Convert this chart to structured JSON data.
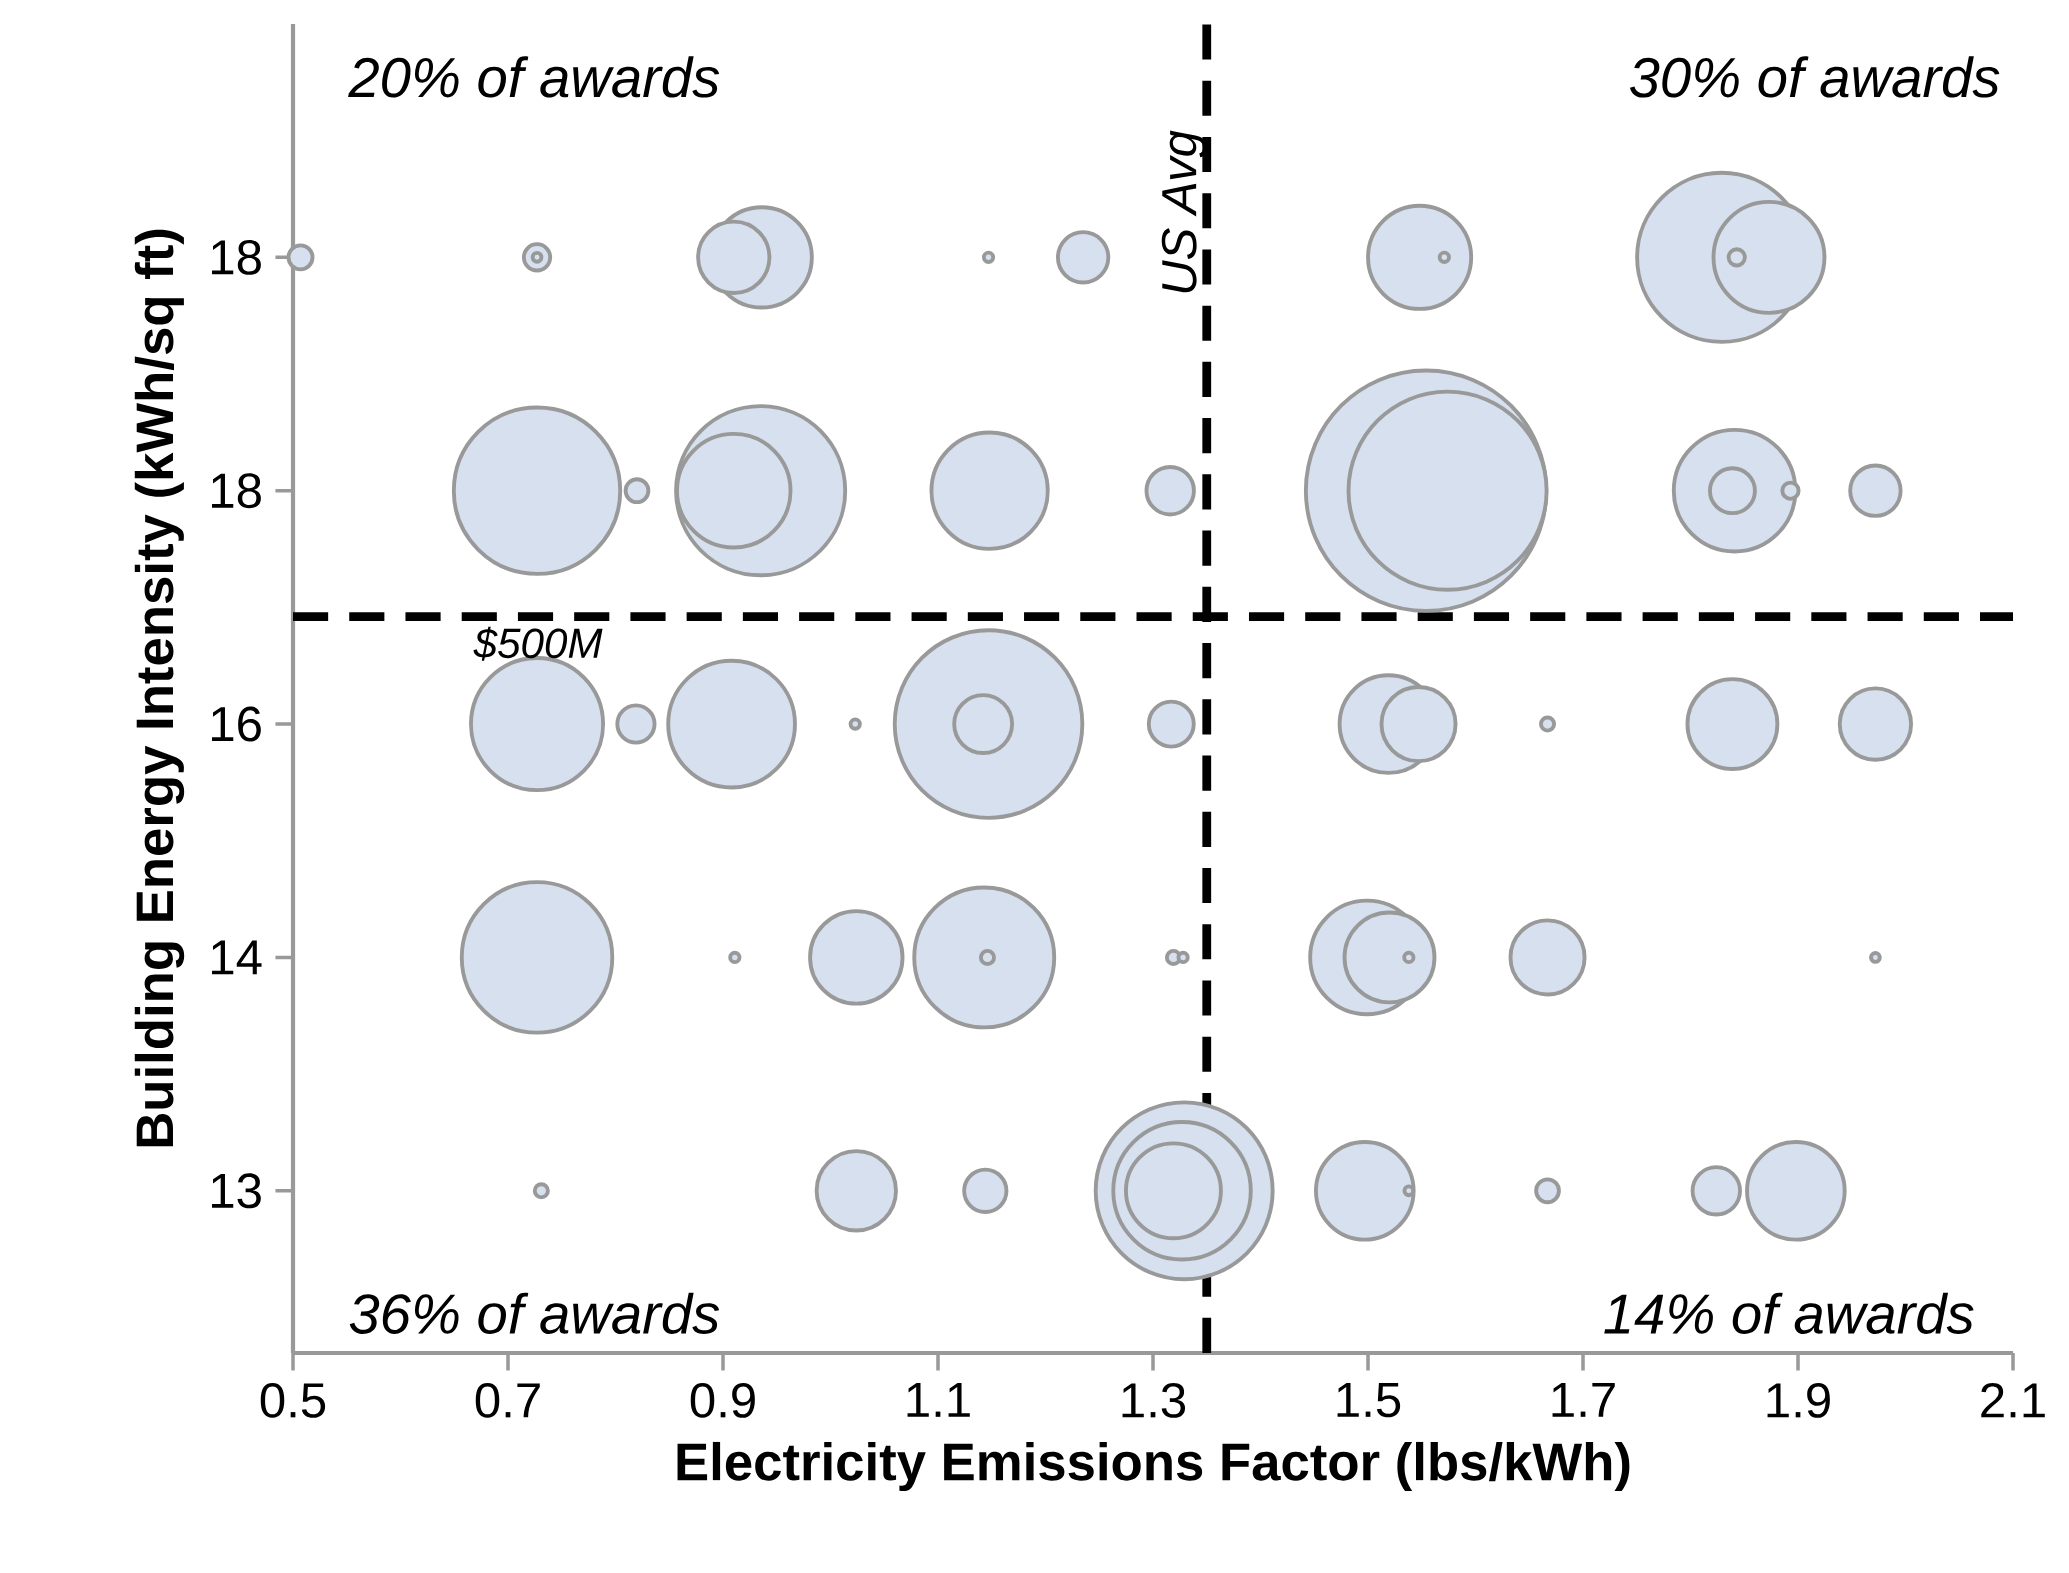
{
  "chart_data": {
    "type": "bubble",
    "orientation": "horizontal",
    "xlabel": "Electricity Emissions Factor (lbs/kWh)",
    "ylabel": "Building  Energy Intensity  (kWh/sq ft)",
    "categories": [
      "18",
      "18",
      "16",
      "14",
      "13"
    ],
    "xlim": [
      0.5,
      2.1
    ],
    "xticks": [
      0.5,
      0.7,
      0.9,
      1.1,
      1.3,
      1.5,
      1.7,
      1.9,
      2.1
    ],
    "grid": false,
    "ref_lines": [
      {
        "axis": "x",
        "value": 1.35,
        "label": "US Avg",
        "line_style": "dashed",
        "color": "#000000"
      }
    ],
    "annotations": [
      "20% of awards",
      "30% of awards",
      "36% of awards",
      "14% of awards",
      "$500M"
    ],
    "series": [
      {
        "color": "#d6e0ee",
        "values": [
          0.507,
          0.727,
          0.727,
          0.727,
          0.731
        ],
        "sizes": [
          0.01,
          0.479,
          0.302,
          0.392,
          0.005
        ]
      },
      {
        "color": "#d6e0ee",
        "values": [
          0.727,
          0.82,
          0.819,
          0.911,
          1.024
        ],
        "sizes": [
          0.012,
          0.009,
          0.024,
          0.003,
          0.109
        ]
      },
      {
        "color": "#d6e0ee",
        "values": [
          0.727,
          0.935,
          0.908,
          1.024,
          1.144
        ],
        "sizes": [
          0.002,
          0.495,
          0.278,
          0.148,
          0.031
        ]
      },
      {
        "color": "#d6e0ee",
        "values": [
          0.936,
          0.91,
          1.023,
          1.143,
          1.329
        ],
        "sizes": [
          0.174,
          0.223,
          0.003,
          0.339,
          0.542
        ]
      },
      {
        "color": "#d6e0ee",
        "values": [
          0.91,
          1.148,
          1.147,
          1.146,
          1.327
        ],
        "sizes": [
          0.088,
          0.234,
          0.609,
          0.005,
          0.327
        ]
      },
      {
        "color": "#d6e0ee",
        "values": [
          1.147,
          1.316,
          1.142,
          1.319,
          1.319
        ],
        "sizes": [
          0.003,
          0.039,
          0.058,
          0.005,
          0.156
        ]
      },
      {
        "color": "#d6e0ee",
        "values": [
          1.235,
          1.554,
          1.317,
          1.328,
          1.497
        ],
        "sizes": [
          0.044,
          1,
          0.035,
          0.003,
          0.165
        ]
      },
      {
        "color": "#d6e0ee",
        "values": [
          1.548,
          1.574,
          1.519,
          1.499,
          1.538
        ],
        "sizes": [
          0.184,
          0.679,
          0.165,
          0.223,
          0.002
        ]
      },
      {
        "color": "#d6e0ee",
        "values": [
          1.571,
          1.841,
          1.547,
          1.52,
          1.667
        ],
        "sizes": [
          0.003,
          0.256,
          0.095,
          0.14,
          0.009
        ]
      },
      {
        "color": "#d6e0ee",
        "values": [
          1.829,
          1.839,
          1.667,
          1.538,
          1.824
        ],
        "sizes": [
          0.495,
          0.035,
          0.005,
          0.003,
          0.039
        ]
      },
      {
        "color": "#d6e0ee",
        "values": [
          1.873,
          1.893,
          1.839,
          1.667,
          1.898
        ],
        "sizes": [
          0.213,
          0.007,
          0.14,
          0.095,
          0.165
        ]
      },
      {
        "color": "#d6e0ee",
        "values": [
          1.843,
          1.972,
          1.972,
          1.972,
          null
        ],
        "sizes": [
          0.007,
          0.044,
          0.088,
          0.002,
          null
        ]
      }
    ]
  }
}
